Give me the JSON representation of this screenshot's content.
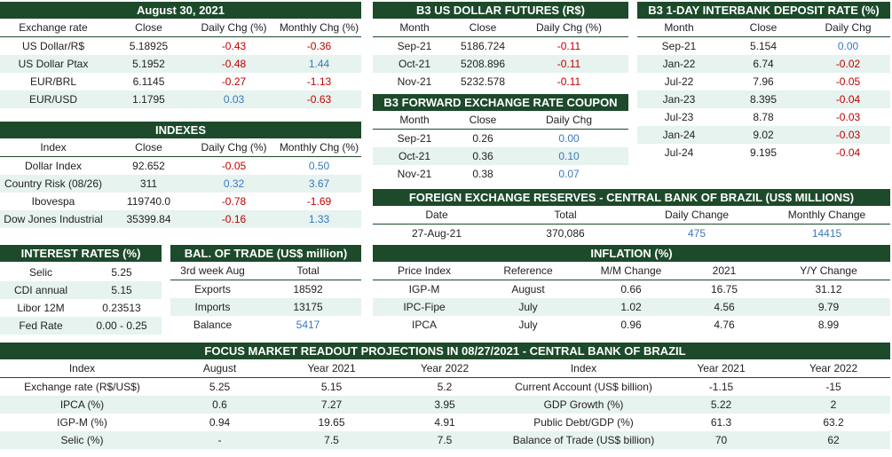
{
  "tables": [
    {
      "title": "August 30, 2021",
      "columns": [
        "Exchange rate",
        "Close",
        "Daily Chg (%)",
        "Monthly Chg (%)"
      ],
      "rows": [
        [
          "US Dollar/R$",
          "5.18925",
          "-0.43",
          "-0.36"
        ],
        [
          "US Dollar Ptax",
          "5.1952",
          "-0.48",
          "1.44"
        ],
        [
          "EUR/BRL",
          "6.1145",
          "-0.27",
          "-1.13"
        ],
        [
          "EUR/USD",
          "1.1795",
          "0.03",
          "-0.63"
        ]
      ]
    },
    {
      "title": "INDEXES",
      "columns": [
        "Index",
        "Close",
        "Daily Chg (%)",
        "Monthly Chg (%)"
      ],
      "rows": [
        [
          "Dollar Index",
          "92.652",
          "-0.05",
          "0.50"
        ],
        [
          "Country Risk (08/26)",
          "311",
          "0.32",
          "3.67"
        ],
        [
          "Ibovespa",
          "119740.0",
          "-0.78",
          "-1.69"
        ],
        [
          "Dow Jones Industrial",
          "35399.84",
          "-0.16",
          "1.33"
        ]
      ]
    },
    {
      "title": "INTEREST RATES (%)",
      "rows": [
        [
          "Selic",
          "5.25"
        ],
        [
          "CDI annual",
          "5.15"
        ],
        [
          "Libor 12M",
          "0.23513"
        ],
        [
          "Fed Rate",
          "0.00 - 0.25"
        ]
      ]
    },
    {
      "title": "BAL. OF TRADE (US$ million)",
      "columns": [
        "3rd week Aug",
        "Total"
      ],
      "rows": [
        [
          "Exports",
          "18592"
        ],
        [
          "Imports",
          "13175"
        ],
        [
          "Balance",
          "5417"
        ]
      ]
    },
    {
      "title": "B3 US DOLLAR FUTURES (R$)",
      "columns": [
        "Month",
        "Close",
        "Daily Chg (%)"
      ],
      "rows": [
        [
          "Sep-21",
          "5186.724",
          "-0.11"
        ],
        [
          "Oct-21",
          "5208.896",
          "-0.11"
        ],
        [
          "Nov-21",
          "5232.578",
          "-0.11"
        ]
      ]
    },
    {
      "title": "B3 FORWARD EXCHANGE RATE COUPON",
      "columns": [
        "Month",
        "Close",
        "Daily Chg"
      ],
      "rows": [
        [
          "Sep-21",
          "0.26",
          "0.00"
        ],
        [
          "Oct-21",
          "0.36",
          "0.10"
        ],
        [
          "Nov-21",
          "0.38",
          "0.07"
        ]
      ]
    },
    {
      "title": "B3 1-DAY INTERBANK DEPOSIT RATE (%)",
      "columns": [
        "Month",
        "Close",
        "Daily Chg"
      ],
      "rows": [
        [
          "Sep-21",
          "5.154",
          "0.00"
        ],
        [
          "Jan-22",
          "6.74",
          "-0.02"
        ],
        [
          "Jul-22",
          "7.96",
          "-0.05"
        ],
        [
          "Jan-23",
          "8.395",
          "-0.04"
        ],
        [
          "Jul-23",
          "8.78",
          "-0.03"
        ],
        [
          "Jan-24",
          "9.02",
          "-0.03"
        ],
        [
          "Jul-24",
          "9.195",
          "-0.04"
        ]
      ]
    },
    {
      "title": "FOREIGN EXCHANGE RESERVES - CENTRAL BANK OF BRAZIL (US$ MILLIONS)",
      "columns": [
        "Date",
        "Total",
        "Daily Change",
        "Monthly Change"
      ],
      "rows": [
        [
          "27-Aug-21",
          "370,086",
          "475",
          "14415"
        ]
      ]
    },
    {
      "title": "INFLATION (%)",
      "columns": [
        "Price Index",
        "Reference",
        "M/M Change",
        "2021",
        "Y/Y Change"
      ],
      "rows": [
        [
          "IGP-M",
          "August",
          "0.66",
          "16.75",
          "31.12"
        ],
        [
          "IPC-Fipe",
          "July",
          "1.02",
          "4.56",
          "9.79"
        ],
        [
          "IPCA",
          "July",
          "0.96",
          "4.76",
          "8.99"
        ]
      ]
    },
    {
      "title": "FOCUS MARKET READOUT PROJECTIONS IN 08/27/2021 - CENTRAL BANK OF BRAZIL",
      "columns": [
        "Index",
        "August",
        "Year 2021",
        "Year 2022",
        "Index",
        "Year 2021",
        "Year 2022"
      ],
      "rows": [
        [
          "Exchange rate (R$/US$)",
          "5.25",
          "5.15",
          "5.2",
          "Current Account (US$ billion)",
          "-1.15",
          "-15"
        ],
        [
          "IPCA (%)",
          "0.6",
          "7.27",
          "3.95",
          "GDP Growth (%)",
          "5.22",
          "2"
        ],
        [
          "IGP-M (%)",
          "0.94",
          "19.65",
          "4.91",
          "Public Debt/GDP (%)",
          "61.3",
          "63.2"
        ],
        [
          "Selic (%)",
          "-",
          "7.5",
          "7.5",
          "Balance of Trade (US$ billion)",
          "70",
          "62"
        ]
      ]
    }
  ]
}
